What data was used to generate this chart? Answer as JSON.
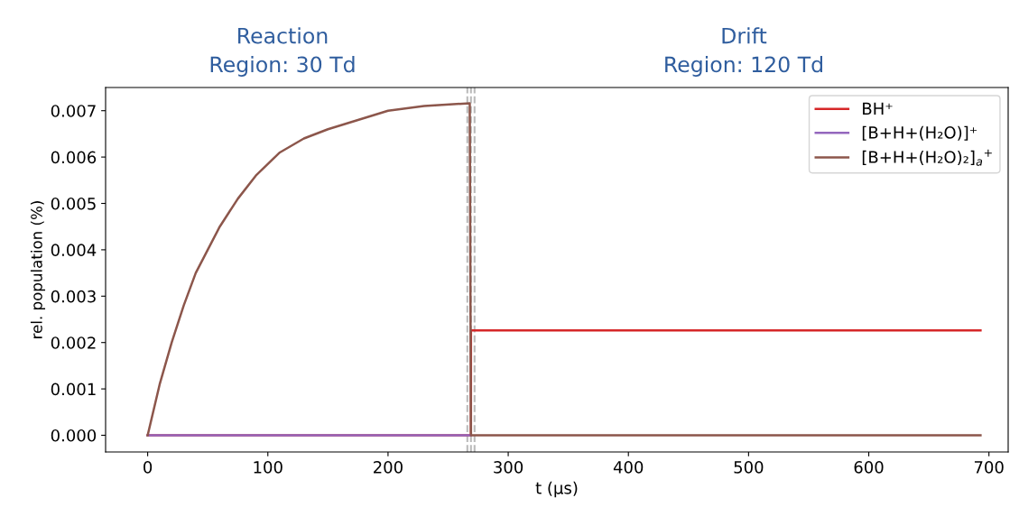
{
  "chart_data": {
    "type": "line",
    "xlabel": "t (μs)",
    "ylabel": "rel. population (%)",
    "annotations": [
      "Reaction\nRegion: 30 Td",
      "Drift\nRegion: 120 Td"
    ],
    "series": [
      {
        "name": "BH⁺",
        "color": "#d62728",
        "x": [
          0,
          269,
          269,
          693
        ],
        "values": [
          0,
          0,
          0.00226,
          0.00226
        ]
      },
      {
        "name": "[B+H+(H₂O)]⁺",
        "color": "#9467bd",
        "x": [
          0,
          269
        ],
        "values": [
          0,
          0
        ]
      },
      {
        "name": "[B+H+(H₂O)₂]$_{a}$$^{+}$",
        "color": "#8c564b",
        "x": [
          0,
          10,
          20,
          30,
          40,
          50,
          60,
          75,
          90,
          110,
          130,
          150,
          175,
          200,
          230,
          268,
          269,
          693
        ],
        "values": [
          0,
          0.0011,
          0.002,
          0.0028,
          0.0035,
          0.004,
          0.0045,
          0.0051,
          0.0056,
          0.0061,
          0.0064,
          0.0066,
          0.0068,
          0.007,
          0.0071,
          0.00716,
          0,
          0
        ]
      }
    ],
    "ref_lines": [
      {
        "axis": "x",
        "value": 266,
        "color": "#bbbbbb",
        "line_style": "dashed"
      },
      {
        "axis": "x",
        "value": 269,
        "color": "#bbbbbb",
        "line_style": "dashed"
      },
      {
        "axis": "x",
        "value": 272,
        "color": "#bbbbbb",
        "line_style": "dashed"
      }
    ],
    "xlim": [
      -35,
      716
    ],
    "xticks": [
      0,
      100,
      200,
      300,
      400,
      500,
      600,
      700
    ],
    "ylim": [
      -0.00036,
      0.0075
    ],
    "yticks": [
      {
        "value": 0,
        "label": "0.000"
      },
      {
        "value": 0.001,
        "label": "0.001"
      },
      {
        "value": 0.002,
        "label": "0.002"
      },
      {
        "value": 0.003,
        "label": "0.003"
      },
      {
        "value": 0.004,
        "label": "0.004"
      },
      {
        "value": 0.005,
        "label": "0.005"
      },
      {
        "value": 0.006,
        "label": "0.006"
      },
      {
        "value": 0.007,
        "label": "0.007"
      }
    ],
    "grid": false,
    "legend": "top right",
    "line_style": "solid",
    "marker": "none"
  }
}
